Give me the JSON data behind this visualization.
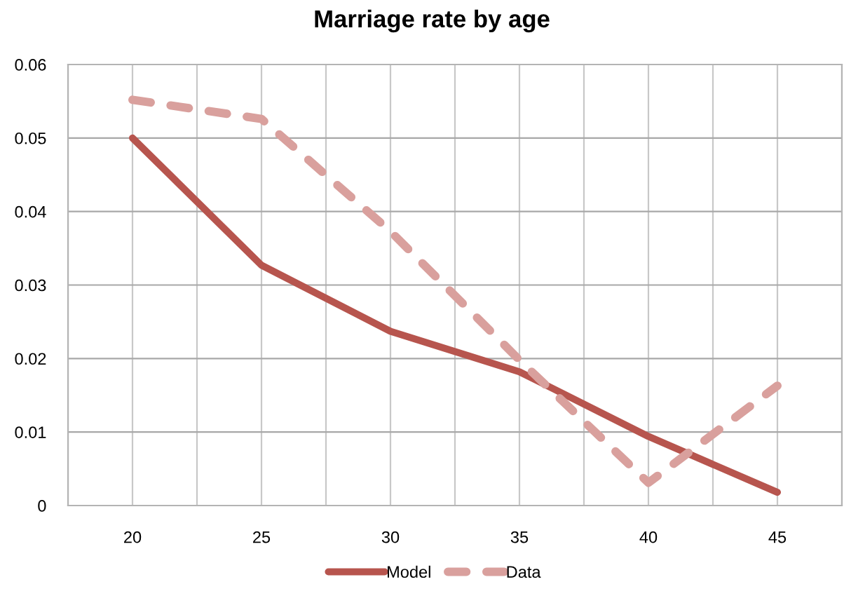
{
  "chart_data": {
    "type": "line",
    "title": "Marriage rate by age",
    "x": [
      20,
      25,
      30,
      35,
      40,
      45
    ],
    "series": [
      {
        "name": "Model",
        "color": "#b7554e",
        "line_style": "solid",
        "values": [
          0.05,
          0.0327,
          0.0237,
          0.0182,
          0.0094,
          0.0018
        ]
      },
      {
        "name": "Data",
        "color": "#d9a09d",
        "line_style": "dashed",
        "values": [
          0.0552,
          0.0526,
          0.0373,
          0.0198,
          0.0031,
          0.0163
        ]
      }
    ],
    "xlim": [
      17.5,
      47.5
    ],
    "xticks": [
      {
        "value": 17.5,
        "label": null
      },
      20,
      {
        "value": 22.5,
        "label": null
      },
      25,
      {
        "value": 27.5,
        "label": null
      },
      30,
      {
        "value": 32.5,
        "label": null
      },
      35,
      {
        "value": 37.5,
        "label": null
      },
      40,
      {
        "value": 42.5,
        "label": null
      },
      45,
      {
        "value": 47.5,
        "label": null
      }
    ],
    "ylim": [
      0,
      0.06
    ],
    "yticks": [
      0,
      0.01,
      0.02,
      0.03,
      0.04,
      0.05,
      0.06
    ],
    "grid": true,
    "legend": "bottom"
  }
}
